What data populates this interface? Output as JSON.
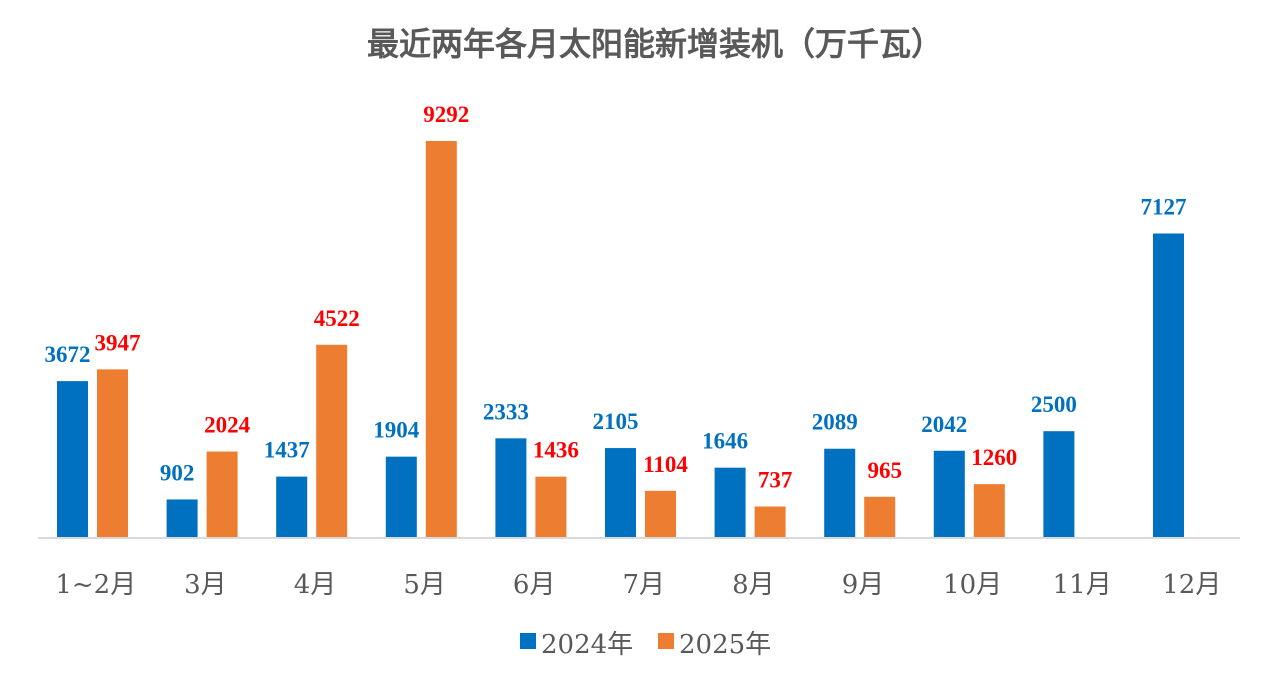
{
  "chart_data": {
    "type": "bar",
    "title": "最近两年各月太阳能新增装机（万千瓦）",
    "xlabel": "",
    "ylabel": "",
    "ylim": [
      0,
      10000
    ],
    "grid": false,
    "legend_position": "bottom",
    "categories": [
      "1~2月",
      "3月",
      "4月",
      "5月",
      "6月",
      "7月",
      "8月",
      "9月",
      "10月",
      "11月",
      "12月"
    ],
    "series": [
      {
        "name": "2024年",
        "color": "#0070C0",
        "label_color": "#0070C0",
        "values": [
          3672,
          902,
          1437,
          1904,
          2333,
          2105,
          1646,
          2089,
          2042,
          2500,
          7127
        ]
      },
      {
        "name": "2025年",
        "color": "#ED7D31",
        "label_color": "#FF0000",
        "values": [
          3947,
          2024,
          4522,
          9292,
          1436,
          1104,
          737,
          965,
          1260,
          null,
          null
        ]
      }
    ]
  }
}
